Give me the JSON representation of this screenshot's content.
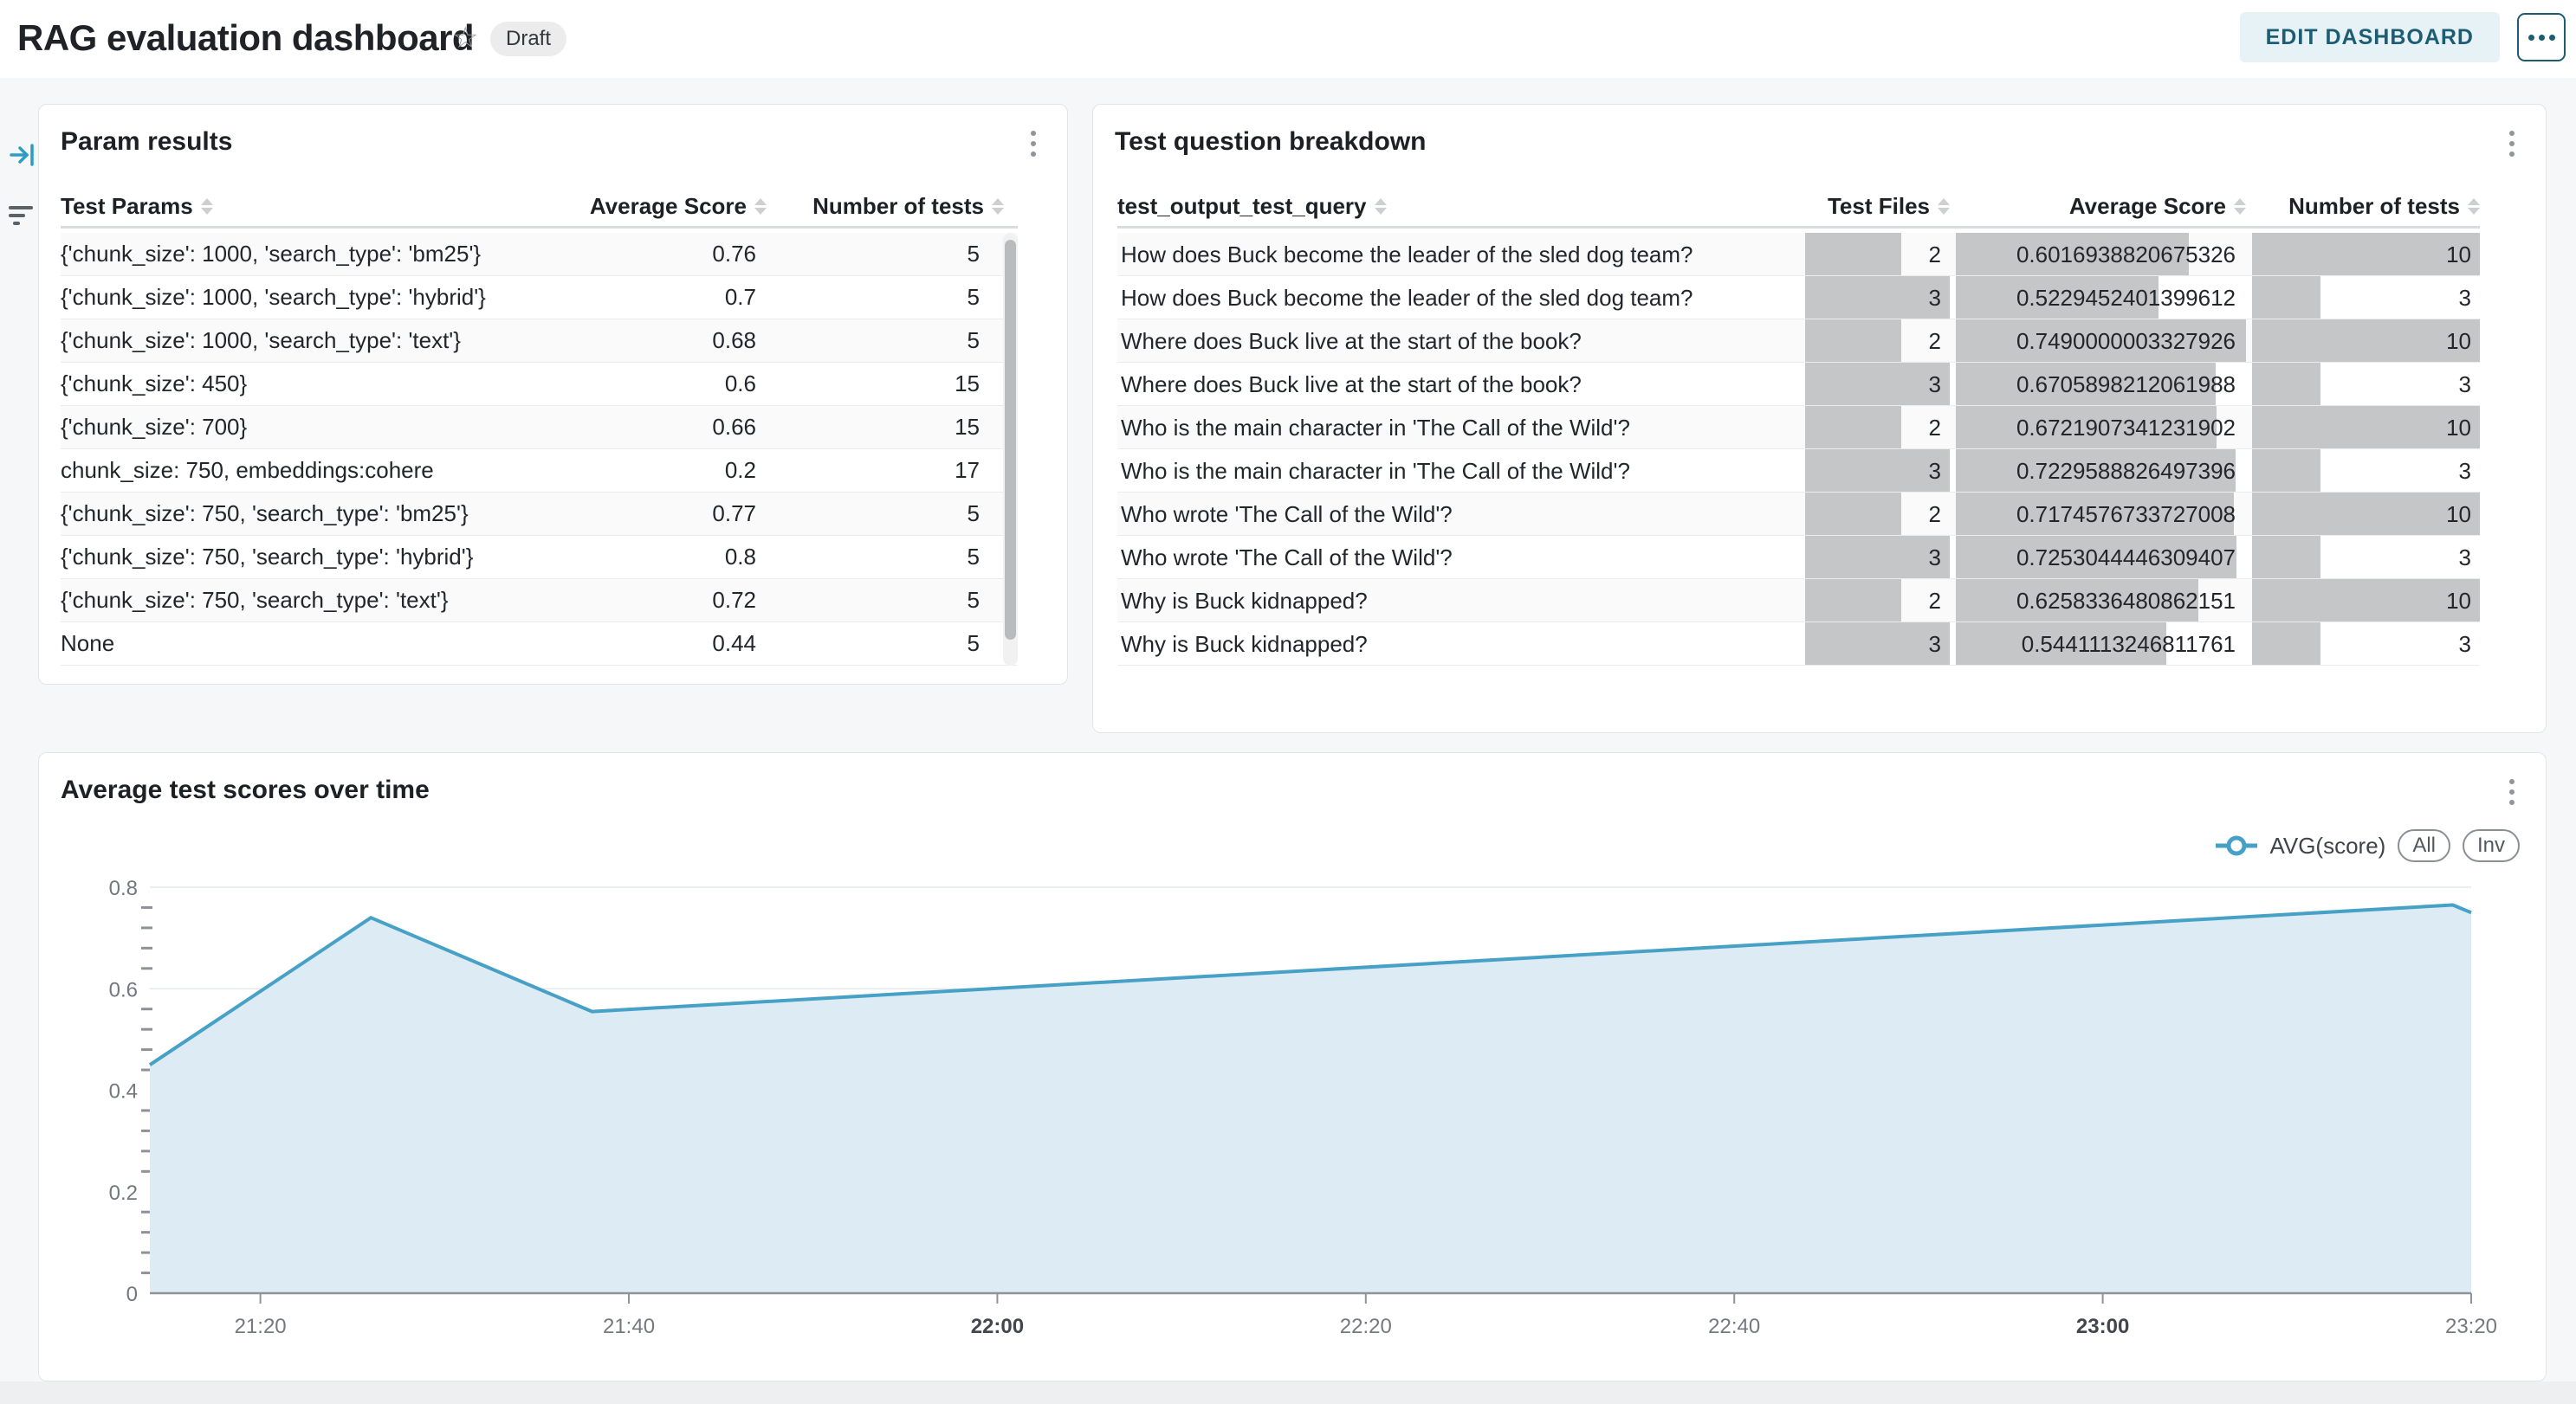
{
  "header": {
    "title": "RAG evaluation dashboard",
    "status_badge": "Draft",
    "edit_button_label": "EDIT DASHBOARD"
  },
  "panels": {
    "param_results": {
      "title": "Param results",
      "columns": [
        "Test Params",
        "Average Score",
        "Number of tests"
      ],
      "rows": [
        {
          "params": "{'chunk_size': 1000, 'search_type': 'bm25'}",
          "avg_score": "0.76",
          "num_tests": "5"
        },
        {
          "params": "{'chunk_size': 1000, 'search_type': 'hybrid'}",
          "avg_score": "0.7",
          "num_tests": "5"
        },
        {
          "params": "{'chunk_size': 1000, 'search_type': 'text'}",
          "avg_score": "0.68",
          "num_tests": "5"
        },
        {
          "params": "{'chunk_size': 450}",
          "avg_score": "0.6",
          "num_tests": "15"
        },
        {
          "params": "{'chunk_size': 700}",
          "avg_score": "0.66",
          "num_tests": "15"
        },
        {
          "params": "chunk_size: 750, embeddings:cohere",
          "avg_score": "0.2",
          "num_tests": "17"
        },
        {
          "params": "{'chunk_size': 750, 'search_type': 'bm25'}",
          "avg_score": "0.77",
          "num_tests": "5"
        },
        {
          "params": "{'chunk_size': 750, 'search_type': 'hybrid'}",
          "avg_score": "0.8",
          "num_tests": "5"
        },
        {
          "params": "{'chunk_size': 750, 'search_type': 'text'}",
          "avg_score": "0.72",
          "num_tests": "5"
        },
        {
          "params": "None",
          "avg_score": "0.44",
          "num_tests": "5"
        }
      ]
    },
    "test_question_breakdown": {
      "title": "Test question breakdown",
      "columns": [
        "test_output_test_query",
        "Test Files",
        "Average Score",
        "Number of tests"
      ],
      "rows": [
        {
          "query": "How does Buck become the leader of the sled dog team?",
          "test_files": 2,
          "avg_score": "0.6016938820675326",
          "num_tests": 10
        },
        {
          "query": "How does Buck become the leader of the sled dog team?",
          "test_files": 3,
          "avg_score": "0.5229452401399612",
          "num_tests": 3
        },
        {
          "query": "Where does Buck live at the start of the book?",
          "test_files": 2,
          "avg_score": "0.7490000003327926",
          "num_tests": 10
        },
        {
          "query": "Where does Buck live at the start of the book?",
          "test_files": 3,
          "avg_score": "0.6705898212061988",
          "num_tests": 3
        },
        {
          "query": "Who is the main character in 'The Call of the Wild'?",
          "test_files": 2,
          "avg_score": "0.6721907341231902",
          "num_tests": 10
        },
        {
          "query": "Who is the main character in 'The Call of the Wild'?",
          "test_files": 3,
          "avg_score": "0.7229588826497396",
          "num_tests": 3
        },
        {
          "query": "Who wrote 'The Call of the Wild'?",
          "test_files": 2,
          "avg_score": "0.7174576733727008",
          "num_tests": 10
        },
        {
          "query": "Who wrote 'The Call of the Wild'?",
          "test_files": 3,
          "avg_score": "0.7253044446309407",
          "num_tests": 3
        },
        {
          "query": "Why is Buck kidnapped?",
          "test_files": 2,
          "avg_score": "0.6258336480862151",
          "num_tests": 10
        },
        {
          "query": "Why is Buck kidnapped?",
          "test_files": 3,
          "avg_score": "0.5441113246811761",
          "num_tests": 3
        }
      ]
    },
    "scores_over_time": {
      "title": "Average test scores over time",
      "legend": {
        "series_label": "AVG(score)",
        "all_button": "All",
        "inv_button": "Inv"
      }
    }
  },
  "chart_data": {
    "type": "area",
    "title": "Average test scores over time",
    "series": [
      {
        "name": "AVG(score)",
        "points": [
          {
            "time": "21:14",
            "value": 0.45
          },
          {
            "time": "21:26",
            "value": 0.74
          },
          {
            "time": "21:38",
            "value": 0.555
          },
          {
            "time": "23:19",
            "value": 0.765
          },
          {
            "time": "23:20",
            "value": 0.75
          }
        ]
      }
    ],
    "x_ticks": [
      "21:20",
      "21:40",
      "22:00",
      "22:20",
      "22:40",
      "23:00",
      "23:20"
    ],
    "bold_x_ticks": [
      "22:00",
      "23:00"
    ],
    "y_ticks": [
      0,
      0.2,
      0.4,
      0.6,
      0.8
    ],
    "y_minor_step": 0.04,
    "ylim": [
      0,
      0.8
    ],
    "xlim": [
      "21:14",
      "23:20"
    ],
    "grid": "horizontal-major",
    "legend_position": "top-right",
    "colors": {
      "line": "#47a1c6",
      "fill": "#dcebf4"
    }
  },
  "colors": {
    "accent_teal": "#1c5d73",
    "edit_button_bg": "#e7f2f6",
    "data_bar_gray": "#c5c6c7",
    "canvas_bg": "#f6f7f8"
  }
}
